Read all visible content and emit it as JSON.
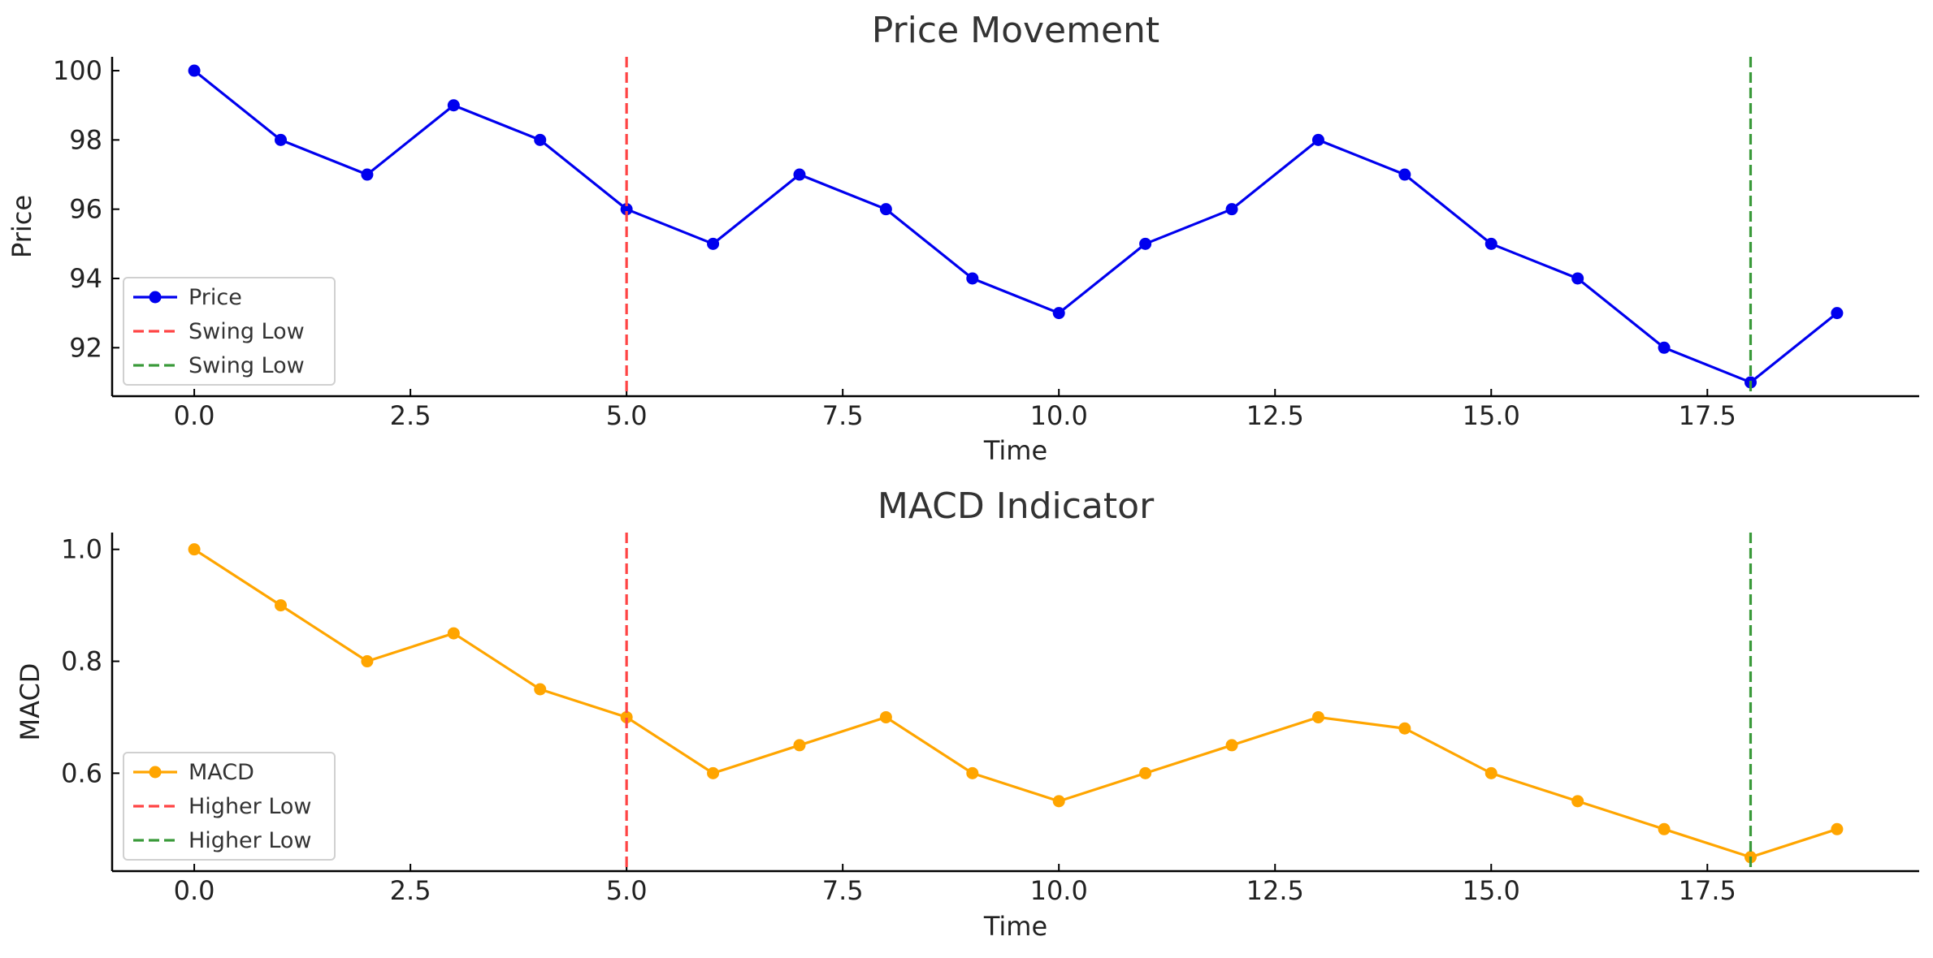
{
  "chart_data": [
    {
      "type": "line",
      "title": "Price Movement",
      "xlabel": "Time",
      "ylabel": "Price",
      "xlim": [
        -0.95,
        19.95
      ],
      "ylim": [
        90.6,
        100.4
      ],
      "x_ticks": [
        0.0,
        2.5,
        5.0,
        7.5,
        10.0,
        12.5,
        15.0,
        17.5
      ],
      "x_tick_labels": [
        "0.0",
        "2.5",
        "5.0",
        "7.5",
        "10.0",
        "12.5",
        "15.0",
        "17.5"
      ],
      "y_ticks": [
        92,
        94,
        96,
        98,
        100
      ],
      "y_tick_labels": [
        "92",
        "94",
        "96",
        "98",
        "100"
      ],
      "grid": false,
      "legend_position": "lower-left",
      "x": [
        0,
        1,
        2,
        3,
        4,
        5,
        6,
        7,
        8,
        9,
        10,
        11,
        12,
        13,
        14,
        15,
        16,
        17,
        18,
        19
      ],
      "series": [
        {
          "name": "Price",
          "color": "#0000ee",
          "values": [
            100,
            98,
            97,
            99,
            98,
            96,
            95,
            97,
            96,
            94,
            93,
            95,
            96,
            98,
            97,
            95,
            94,
            92,
            91,
            93
          ]
        }
      ],
      "vlines": [
        {
          "name": "Swing Low",
          "x": 5,
          "color": "#ff4444"
        },
        {
          "name": "Swing Low",
          "x": 18,
          "color": "#3a9a3a"
        }
      ]
    },
    {
      "type": "line",
      "title": "MACD Indicator",
      "xlabel": "Time",
      "ylabel": "MACD",
      "xlim": [
        -0.95,
        19.95
      ],
      "ylim": [
        0.425,
        1.03
      ],
      "x_ticks": [
        0.0,
        2.5,
        5.0,
        7.5,
        10.0,
        12.5,
        15.0,
        17.5
      ],
      "x_tick_labels": [
        "0.0",
        "2.5",
        "5.0",
        "7.5",
        "10.0",
        "12.5",
        "15.0",
        "17.5"
      ],
      "y_ticks": [
        0.6,
        0.8,
        1.0
      ],
      "y_tick_labels": [
        "0.6",
        "0.8",
        "1.0"
      ],
      "grid": false,
      "legend_position": "lower-left",
      "x": [
        0,
        1,
        2,
        3,
        4,
        5,
        6,
        7,
        8,
        9,
        10,
        11,
        12,
        13,
        14,
        15,
        16,
        17,
        18,
        19
      ],
      "series": [
        {
          "name": "MACD",
          "color": "#ffa500",
          "values": [
            1.0,
            0.9,
            0.8,
            0.85,
            0.75,
            0.7,
            0.6,
            0.65,
            0.7,
            0.6,
            0.55,
            0.6,
            0.65,
            0.7,
            0.68,
            0.6,
            0.55,
            0.5,
            0.45,
            0.5
          ]
        }
      ],
      "vlines": [
        {
          "name": "Higher Low",
          "x": 5,
          "color": "#ff4444"
        },
        {
          "name": "Higher Low",
          "x": 18,
          "color": "#3a9a3a"
        }
      ]
    }
  ]
}
